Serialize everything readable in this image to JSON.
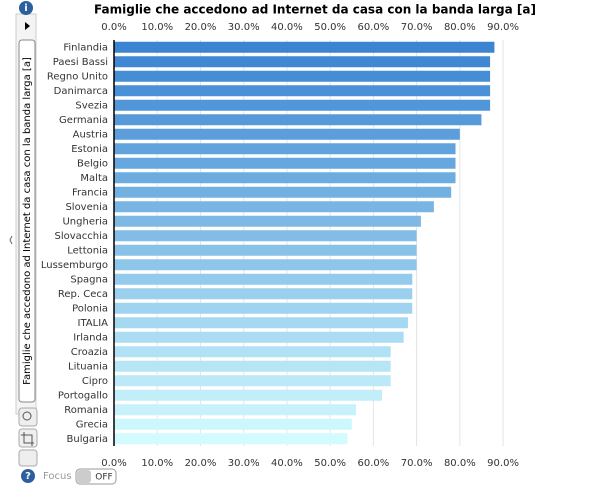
{
  "chart_data": {
    "type": "hbar",
    "title": "Famiglie che accedono ad Internet da casa con la banda larga [a]",
    "y_label": "Famiglie che accedono ad Internet da casa con la banda larga [a]",
    "categories": [
      "Finlandia",
      "Paesi Bassi",
      "Regno Unito",
      "Danimarca",
      "Svezia",
      "Germania",
      "Austria",
      "Estonia",
      "Belgio",
      "Malta",
      "Francia",
      "Slovenia",
      "Ungheria",
      "Slovacchia",
      "Lettonia",
      "Lussemburgo",
      "Spagna",
      "Rep. Ceca",
      "Polonia",
      "ITALIA",
      "Irlanda",
      "Croazia",
      "Lituania",
      "Cipro",
      "Portogallo",
      "Romania",
      "Grecia",
      "Bulgaria"
    ],
    "values": [
      88,
      87,
      87,
      87,
      87,
      85,
      80,
      79,
      79,
      79,
      78,
      74,
      71,
      70,
      70,
      70,
      69,
      69,
      69,
      68,
      67,
      64,
      64,
      64,
      62,
      56,
      55,
      54
    ],
    "color_start": "#3a84d2",
    "color_end": "#d2fbfe",
    "xlim": [
      0,
      96
    ],
    "xticks": [
      {
        "value": 0,
        "label": "0.0%"
      },
      {
        "value": 10,
        "label": "10.0%"
      },
      {
        "value": 20,
        "label": "20.0%"
      },
      {
        "value": 30,
        "label": "30.0%"
      },
      {
        "value": 40,
        "label": "40.0%"
      },
      {
        "value": 50,
        "label": "50.0%"
      },
      {
        "value": 60,
        "label": "60.0%"
      },
      {
        "value": 70,
        "label": "70.0%"
      },
      {
        "value": 80,
        "label": "80.0%"
      },
      {
        "value": 90,
        "label": "90.0%"
      }
    ],
    "grid": true
  },
  "ui": {
    "focus_label": "Focus",
    "toggle": "OFF"
  }
}
